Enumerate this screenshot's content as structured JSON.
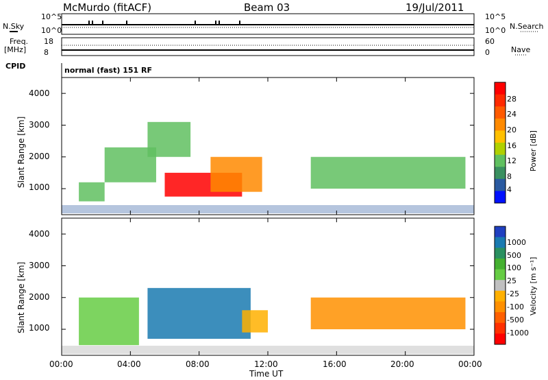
{
  "header": {
    "station": "McMurdo (fitACF)",
    "beam": "Beam 03",
    "date": "19/Jul/2011"
  },
  "param_panels": {
    "nsky_label": "N.Sky",
    "nsky_ticks": [
      "10^5",
      "10^0"
    ],
    "nsearch_label": "N.Search",
    "nsearch_ticks": [
      "10^5",
      "10^0"
    ],
    "freq_label": "Freq.",
    "freq_unit": "[MHz]",
    "freq_ticks": [
      "18",
      "8"
    ],
    "nave_label": "Nave",
    "nave_ticks": [
      "60",
      "0"
    ],
    "cpid_label": "CPID",
    "cpid_value": "normal (fast) 151 RF"
  },
  "axes": {
    "ylabel": "Slant Range [km]",
    "y_ticks": [
      "4000",
      "3000",
      "2000",
      "1000"
    ],
    "xlabel": "Time UT",
    "x_ticks": [
      "00:00",
      "04:00",
      "08:00",
      "12:00",
      "16:00",
      "20:00",
      "00:00"
    ]
  },
  "power_colorbar": {
    "label": "Power [dB]",
    "ticks": [
      "28",
      "24",
      "20",
      "16",
      "12",
      "8",
      "4"
    ],
    "colors": [
      "#ff0000",
      "#ff2a00",
      "#ff5a00",
      "#ff8a00",
      "#ffc000",
      "#b0d000",
      "#60c060",
      "#3a9060",
      "#2a5aa0",
      "#0010ff"
    ]
  },
  "velocity_colorbar": {
    "label": "Velocity [m s⁻¹]",
    "ticks": [
      "1000",
      "500",
      "100",
      "25",
      "-25",
      "-100",
      "-500",
      "-1000"
    ],
    "colors": [
      "#2040c0",
      "#1a7ab0",
      "#2a9060",
      "#44b030",
      "#66cc44",
      "#c0c0c0",
      "#ffb000",
      "#ff9000",
      "#ff6000",
      "#ff3000",
      "#ff0000"
    ]
  },
  "chart_data": {
    "type": "heatmap",
    "x_range": [
      "00:00",
      "00:00 (+24h)"
    ],
    "y_range_km": [
      180,
      4500
    ],
    "power_range_db": [
      0,
      30
    ],
    "velocity_range_ms": [
      -1000,
      1000
    ],
    "power_regions": [
      {
        "t_start": "06:00",
        "t_end": "10:30",
        "range_km": [
          750,
          1500
        ],
        "power_db": 28
      },
      {
        "t_start": "08:40",
        "t_end": "11:40",
        "range_km": [
          900,
          2000
        ],
        "power_db": 20
      },
      {
        "t_start": "01:00",
        "t_end": "02:30",
        "range_km": [
          600,
          1200
        ],
        "power_db": 12
      },
      {
        "t_start": "02:30",
        "t_end": "05:30",
        "range_km": [
          1200,
          2300
        ],
        "power_db": 10
      },
      {
        "t_start": "05:00",
        "t_end": "07:30",
        "range_km": [
          2000,
          3100
        ],
        "power_db": 10
      },
      {
        "t_start": "14:30",
        "t_end": "23:30",
        "range_km": [
          1000,
          2000
        ],
        "power_db": 12
      }
    ],
    "velocity_regions": [
      {
        "t_start": "05:00",
        "t_end": "11:00",
        "range_km": [
          700,
          2300
        ],
        "velocity_ms": 700
      },
      {
        "t_start": "10:30",
        "t_end": "12:00",
        "range_km": [
          900,
          1600
        ],
        "velocity_ms": -200
      },
      {
        "t_start": "01:00",
        "t_end": "04:30",
        "range_km": [
          500,
          2000
        ],
        "velocity_ms": 200
      },
      {
        "t_start": "14:30",
        "t_end": "23:30",
        "range_km": [
          1000,
          2000
        ],
        "velocity_ms": -400
      }
    ]
  }
}
